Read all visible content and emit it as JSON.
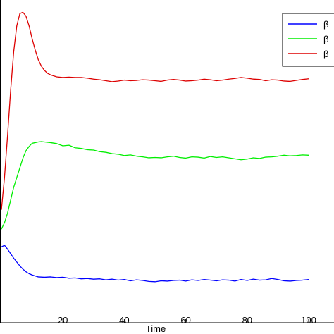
{
  "chart_data": {
    "type": "line",
    "xlabel": "Time",
    "ylabel": "",
    "xlim": [
      0,
      100
    ],
    "ylim": [
      0,
      1
    ],
    "x_ticks": [
      20,
      40,
      60,
      80,
      100
    ],
    "grid": false,
    "legend_position": "top-right",
    "series": [
      {
        "name": "β",
        "color": "#0000ff",
        "x": [
          0,
          1,
          2,
          3,
          4,
          5,
          6,
          7,
          8,
          9,
          10,
          11,
          12,
          14,
          16,
          18,
          20,
          22,
          24,
          26,
          28,
          30,
          32,
          34,
          36,
          38,
          40,
          42,
          44,
          46,
          48,
          50,
          52,
          54,
          56,
          58,
          60,
          62,
          64,
          66,
          68,
          70,
          72,
          74,
          76,
          78,
          80,
          82,
          84,
          86,
          88,
          90,
          92,
          94,
          96,
          98,
          100
        ],
        "y": [
          0.235,
          0.24,
          0.228,
          0.214,
          0.2,
          0.188,
          0.176,
          0.166,
          0.158,
          0.152,
          0.148,
          0.145,
          0.142,
          0.141,
          0.142,
          0.14,
          0.141,
          0.138,
          0.139,
          0.136,
          0.137,
          0.135,
          0.136,
          0.133,
          0.135,
          0.132,
          0.134,
          0.13,
          0.133,
          0.131,
          0.128,
          0.127,
          0.13,
          0.129,
          0.131,
          0.132,
          0.129,
          0.133,
          0.131,
          0.134,
          0.132,
          0.13,
          0.133,
          0.132,
          0.129,
          0.134,
          0.131,
          0.135,
          0.132,
          0.133,
          0.137,
          0.134,
          0.13,
          0.129,
          0.131,
          0.132,
          0.134
        ]
      },
      {
        "name": "β",
        "color": "#00ee00",
        "x": [
          0,
          1,
          2,
          3,
          4,
          5,
          6,
          7,
          8,
          9,
          10,
          11,
          12,
          13,
          14,
          16,
          18,
          20,
          22,
          24,
          26,
          28,
          30,
          32,
          34,
          36,
          38,
          40,
          42,
          44,
          46,
          48,
          50,
          52,
          54,
          56,
          58,
          60,
          62,
          64,
          66,
          68,
          70,
          72,
          74,
          76,
          78,
          80,
          82,
          84,
          86,
          88,
          90,
          92,
          94,
          96,
          98,
          100
        ],
        "y": [
          0.29,
          0.31,
          0.34,
          0.38,
          0.42,
          0.45,
          0.48,
          0.51,
          0.533,
          0.546,
          0.556,
          0.558,
          0.56,
          0.561,
          0.56,
          0.558,
          0.555,
          0.548,
          0.55,
          0.542,
          0.54,
          0.536,
          0.535,
          0.53,
          0.528,
          0.524,
          0.522,
          0.518,
          0.52,
          0.516,
          0.514,
          0.511,
          0.512,
          0.511,
          0.514,
          0.516,
          0.512,
          0.51,
          0.514,
          0.513,
          0.51,
          0.515,
          0.512,
          0.514,
          0.511,
          0.508,
          0.505,
          0.507,
          0.511,
          0.509,
          0.513,
          0.514,
          0.516,
          0.519,
          0.517,
          0.518,
          0.52,
          0.519
        ]
      },
      {
        "name": "β",
        "color": "#dd0000",
        "x": [
          0,
          1,
          2,
          3,
          4,
          5,
          6,
          7,
          8,
          9,
          10,
          11,
          12,
          13,
          14,
          15,
          16,
          18,
          20,
          22,
          24,
          26,
          28,
          30,
          32,
          34,
          36,
          38,
          40,
          42,
          44,
          46,
          48,
          50,
          52,
          54,
          56,
          58,
          60,
          62,
          64,
          66,
          68,
          70,
          72,
          74,
          76,
          78,
          80,
          82,
          84,
          86,
          88,
          90,
          92,
          94,
          96,
          98,
          100
        ],
        "y": [
          0.35,
          0.45,
          0.58,
          0.72,
          0.84,
          0.92,
          0.958,
          0.962,
          0.95,
          0.92,
          0.88,
          0.845,
          0.815,
          0.795,
          0.782,
          0.773,
          0.768,
          0.762,
          0.76,
          0.761,
          0.76,
          0.76,
          0.758,
          0.755,
          0.753,
          0.75,
          0.747,
          0.749,
          0.752,
          0.75,
          0.751,
          0.753,
          0.752,
          0.75,
          0.748,
          0.752,
          0.754,
          0.752,
          0.749,
          0.75,
          0.752,
          0.755,
          0.753,
          0.75,
          0.752,
          0.755,
          0.757,
          0.76,
          0.758,
          0.755,
          0.754,
          0.75,
          0.753,
          0.752,
          0.749,
          0.748,
          0.751,
          0.754,
          0.756
        ]
      }
    ]
  }
}
